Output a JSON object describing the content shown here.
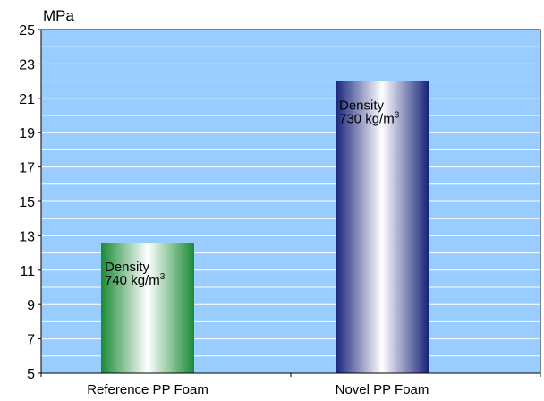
{
  "chart_data": {
    "type": "bar",
    "ylabel": "MPa",
    "ylim": [
      5,
      25
    ],
    "yticks": [
      5,
      7,
      9,
      11,
      13,
      15,
      17,
      19,
      21,
      23,
      25
    ],
    "grid": true,
    "categories": [
      "Reference PP Foam",
      "Novel PP Foam"
    ],
    "values": [
      12.6,
      22.0
    ],
    "bar_colors": [
      "#1e8c3a",
      "#1b2a8a"
    ],
    "plot_background": "#99ccff",
    "annotations": [
      {
        "line1": "Density",
        "line2_prefix": "740 kg/m",
        "line2_sup": "3"
      },
      {
        "line1": "Density",
        "line2_prefix": "730 kg/m",
        "line2_sup": "3"
      }
    ]
  }
}
